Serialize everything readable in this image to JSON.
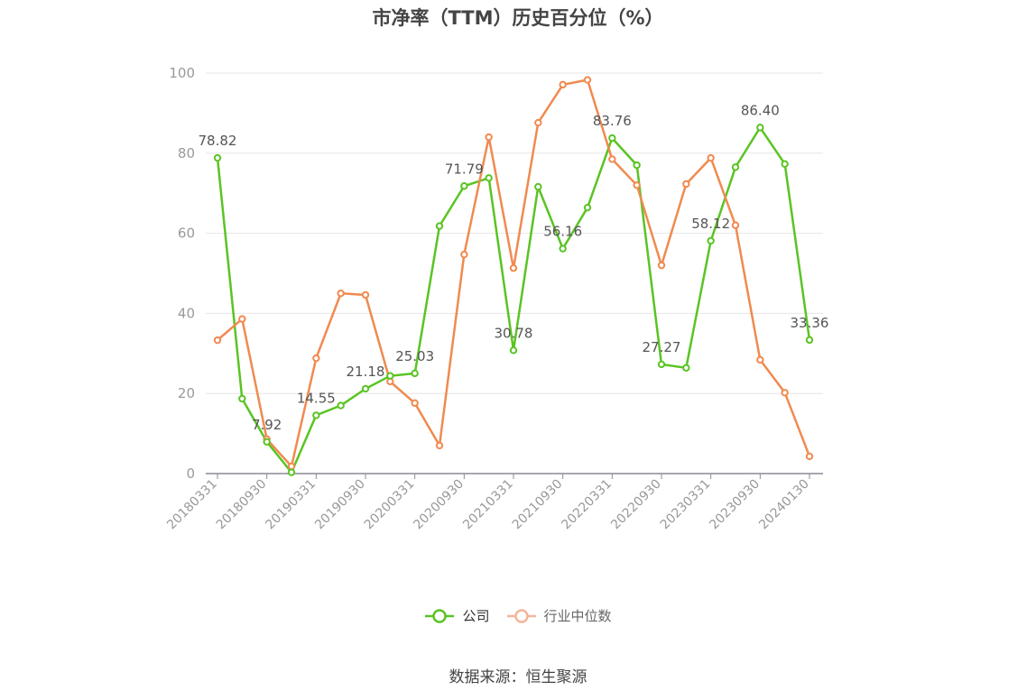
{
  "chart_data": {
    "type": "line",
    "title": "市净率（TTM）历史百分位（%）",
    "xlabel": "",
    "ylabel": "",
    "ylim": [
      0,
      100
    ],
    "yticks": [
      0,
      20,
      40,
      60,
      80,
      100
    ],
    "grid": true,
    "legend_position": "bottom",
    "x": [
      "20180331",
      "20180630",
      "20180930",
      "20181231",
      "20190331",
      "20190630",
      "20190930",
      "20191231",
      "20200331",
      "20200630",
      "20200930",
      "20201231",
      "20210331",
      "20210630",
      "20210930",
      "20211231",
      "20220331",
      "20220630",
      "20220930",
      "20221231",
      "20230331",
      "20230630",
      "20230930",
      "20231231",
      "20240130"
    ],
    "xtick_labels": [
      "20180331",
      "20180930",
      "20190331",
      "20190930",
      "20200331",
      "20200930",
      "20210331",
      "20210930",
      "20220331",
      "20220930",
      "20230331",
      "20230930",
      "20240130"
    ],
    "series": [
      {
        "name": "公司",
        "color": "#5ac423",
        "values": [
          78.82,
          18.7,
          7.92,
          0.3,
          14.55,
          17.0,
          21.18,
          24.4,
          25.03,
          61.8,
          71.79,
          73.8,
          30.78,
          71.6,
          56.16,
          66.4,
          83.76,
          77.0,
          27.27,
          26.4,
          58.12,
          76.5,
          86.4,
          77.3,
          33.36
        ],
        "labels": {
          "0": "78.82",
          "2": "7.92",
          "4": "14.55",
          "6": "21.18",
          "8": "25.03",
          "10": "71.79",
          "12": "30.78",
          "14": "56.16",
          "16": "83.76",
          "18": "27.27",
          "20": "58.12",
          "22": "86.40",
          "24": "33.36"
        }
      },
      {
        "name": "行业中位数",
        "color": "#f08a50",
        "values": [
          33.3,
          38.6,
          8.6,
          1.8,
          28.8,
          45.0,
          44.6,
          23.0,
          17.6,
          7.0,
          54.7,
          84.0,
          51.3,
          87.6,
          97.1,
          98.3,
          78.5,
          72.0,
          52.0,
          72.3,
          78.8,
          62.0,
          28.4,
          20.2,
          4.3
        ]
      }
    ]
  },
  "legend": {
    "company_label": "公司",
    "industry_label": "行业中位数",
    "company_color": "#5ac423",
    "industry_color": "#f4b59a"
  },
  "footer": {
    "source_text": "数据来源：恒生聚源"
  }
}
